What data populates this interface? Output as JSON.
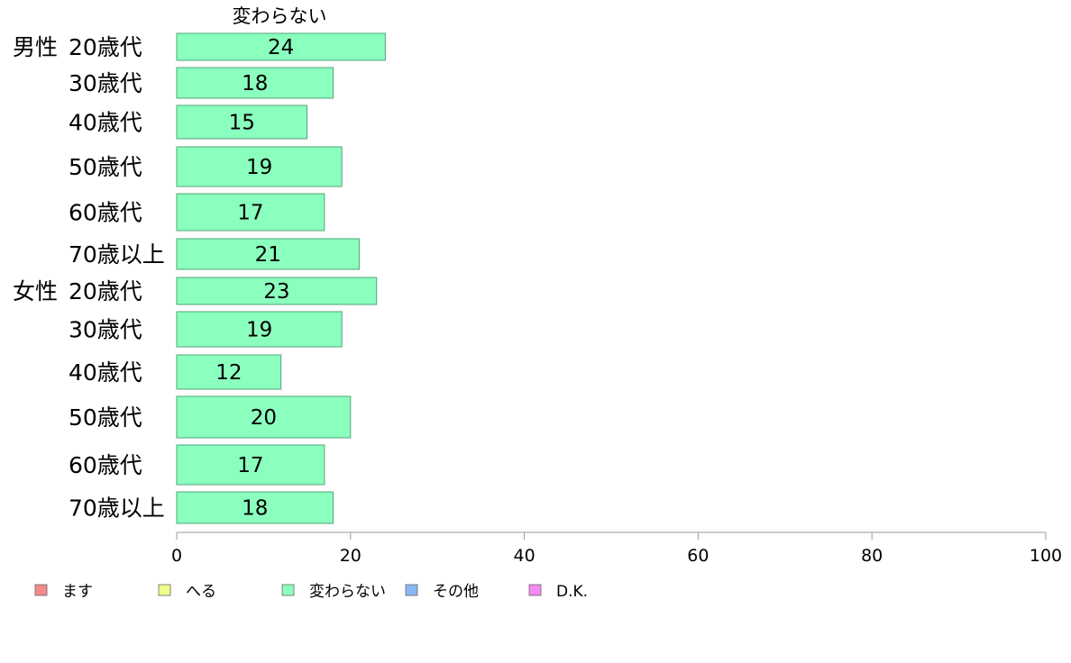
{
  "chart_data": {
    "type": "bar",
    "orientation": "horizontal",
    "title": "変わらない",
    "xlim": [
      0,
      100
    ],
    "xticks": [
      0,
      20,
      40,
      60,
      80,
      100
    ],
    "groups": [
      "男性",
      "女性"
    ],
    "categories": [
      "20歳代",
      "30歳代",
      "40歳代",
      "50歳代",
      "60歳代",
      "70歳以上",
      "20歳代",
      "30歳代",
      "40歳代",
      "50歳代",
      "60歳代",
      "70歳以上"
    ],
    "series": [
      {
        "name": "変わらない",
        "color": "#8affbe",
        "values": [
          24,
          18,
          15,
          19,
          17,
          21,
          23,
          19,
          12,
          20,
          17,
          18
        ]
      }
    ],
    "legend": {
      "position": "bottom-left",
      "items": [
        {
          "label": "ます",
          "color": "#f58a8a"
        },
        {
          "label": "へる",
          "color": "#efff8a"
        },
        {
          "label": "変わらない",
          "color": "#8affbe"
        },
        {
          "label": "その他",
          "color": "#8ab8f5"
        },
        {
          "label": "D.K.",
          "color": "#f58af5"
        }
      ]
    },
    "bar_edge_color": "#52a57a",
    "axis_color": "#999999"
  }
}
